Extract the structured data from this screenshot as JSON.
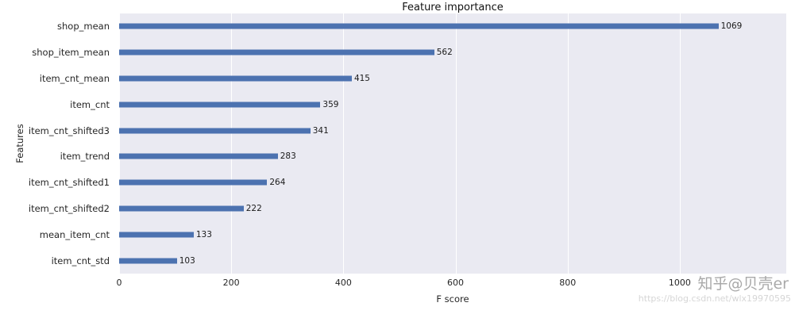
{
  "chart_data": {
    "type": "bar",
    "orientation": "horizontal",
    "title": "Feature importance",
    "xlabel": "F score",
    "ylabel": "Features",
    "categories": [
      "shop_mean",
      "shop_item_mean",
      "item_cnt_mean",
      "item_cnt",
      "item_cnt_shifted3",
      "item_trend",
      "item_cnt_shifted1",
      "item_cnt_shifted2",
      "mean_item_cnt",
      "item_cnt_std"
    ],
    "values": [
      1069,
      562,
      415,
      359,
      341,
      283,
      264,
      222,
      133,
      103
    ],
    "xlim": [
      0,
      1190
    ],
    "xticks": [
      0,
      200,
      400,
      600,
      800,
      1000
    ],
    "grid": true,
    "legend": "none",
    "bar_color": "#4c72b0",
    "plot_bg": "#eaeaf2"
  },
  "watermark": {
    "line1": "知乎@贝壳er",
    "line2": "https://blog.csdn.net/wlx19970595"
  }
}
